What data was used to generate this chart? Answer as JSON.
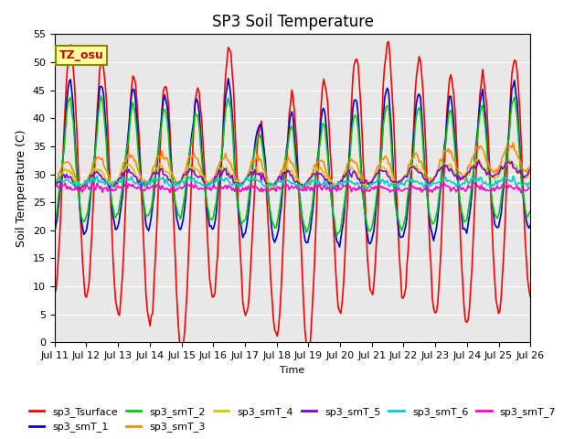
{
  "title": "SP3 Soil Temperature",
  "ylabel": "Soil Temperature (C)",
  "xlabel": "Time",
  "ylim": [
    0,
    55
  ],
  "xlim": [
    0,
    360
  ],
  "bg_color": "#e8e8e8",
  "plot_bg": "#e8e8e8",
  "tz_label": "TZ_osu",
  "series_colors": {
    "sp3_Tsurface": "#ff0000",
    "sp3_smT_1": "#0000cc",
    "sp3_smT_2": "#00cc00",
    "sp3_smT_3": "#ff8800",
    "sp3_smT_4": "#cccc00",
    "sp3_smT_5": "#8800cc",
    "sp3_smT_6": "#00cccc",
    "sp3_smT_7": "#ff00cc"
  },
  "x_tick_labels": [
    "Jul 11",
    "Jul 12",
    "Jul 13",
    "Jul 14",
    "Jul 15",
    "Jul 16",
    "Jul 17",
    "Jul 18",
    "Jul 19",
    "Jul 20",
    "Jul 21",
    "Jul 22",
    "Jul 23",
    "Jul 24",
    "Jul 25",
    "Jul 26"
  ],
  "n_days": 15,
  "pts_per_day": 24
}
